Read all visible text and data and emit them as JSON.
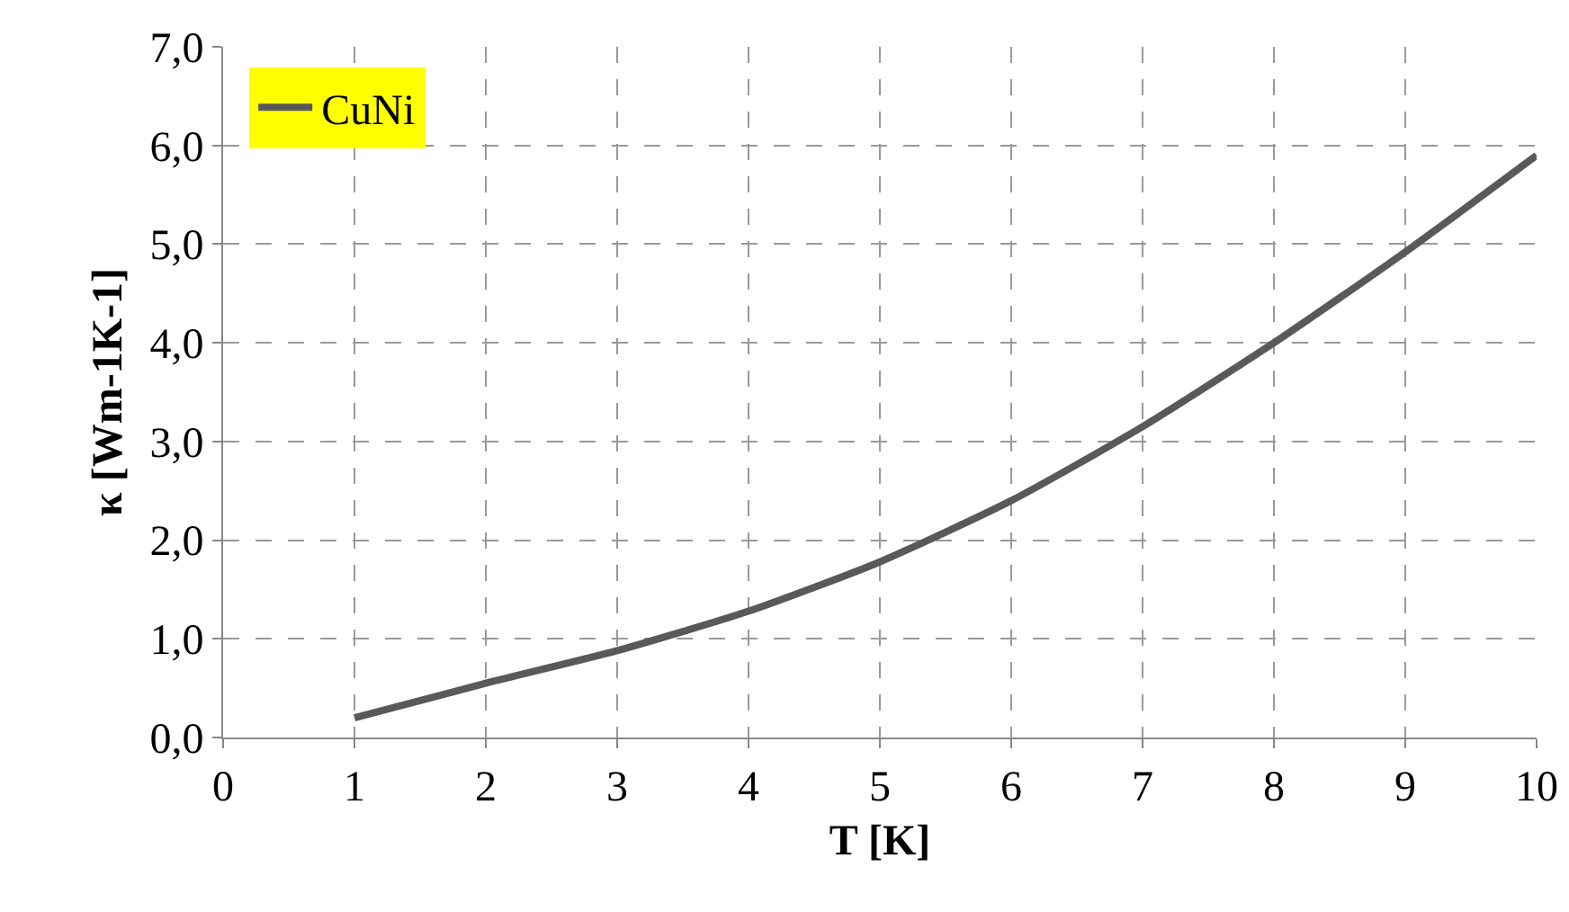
{
  "chart_data": {
    "type": "line",
    "xlabel": "T [K]",
    "ylabel": "κ [Wm-1K-1]",
    "x": [
      1,
      2,
      3,
      4,
      5,
      6,
      7,
      8,
      9,
      10
    ],
    "series": [
      {
        "name": "CuNi",
        "color": "#595959",
        "values": [
          0.2,
          0.55,
          0.88,
          1.28,
          1.78,
          2.4,
          3.15,
          4.0,
          4.92,
          5.9
        ]
      }
    ],
    "xlim": [
      0,
      10
    ],
    "xticks": [
      0,
      1,
      2,
      3,
      4,
      5,
      6,
      7,
      8,
      9,
      10
    ],
    "ylim": [
      0,
      7
    ],
    "yticks": [
      {
        "value": 0,
        "label": "0,0"
      },
      {
        "value": 1,
        "label": "1,0"
      },
      {
        "value": 2,
        "label": "2,0"
      },
      {
        "value": 3,
        "label": "3,0"
      },
      {
        "value": 4,
        "label": "4,0"
      },
      {
        "value": 5,
        "label": "5,0"
      },
      {
        "value": 6,
        "label": "6,0"
      },
      {
        "value": 7,
        "label": "7,0"
      }
    ],
    "grid": true,
    "legend": "top left",
    "marker": "none",
    "line_style": "solid"
  }
}
